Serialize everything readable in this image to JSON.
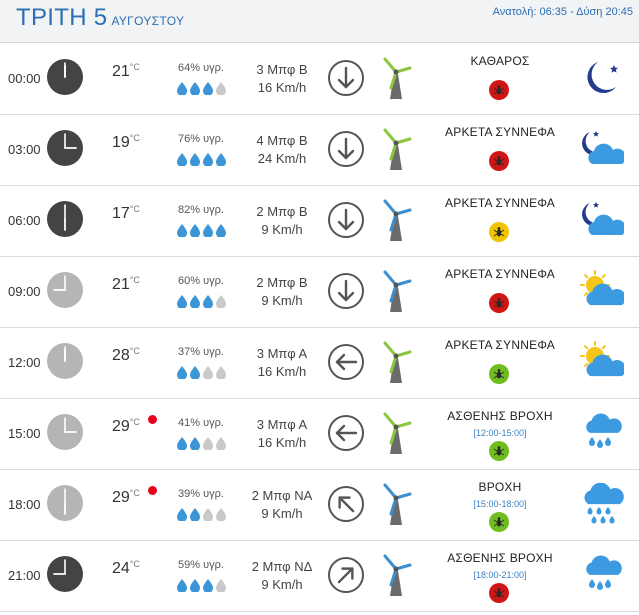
{
  "header": {
    "day": "ΤΡΙΤΗ 5",
    "month": "ΑΥΓΟΥΣΤΟΥ",
    "sun": "Ανατολή: 06:35  - Δύση 20:45"
  },
  "colors": {
    "accent": "#2c6fb3",
    "alert_red": "#e8001c",
    "bug_red": "#d01515",
    "bug_yellow": "#f0c400",
    "bug_green": "#6fbe1e",
    "turbine_green": "#8cc63f",
    "turbine_blue": "#3c8fce"
  },
  "rows": [
    {
      "time": "00:00",
      "temp": "21",
      "unit": "°C",
      "alert": false,
      "humidity": "64% υγρ.",
      "drops": 3,
      "beaufort": "3 Μπφ Β",
      "speed": "16 Km/h",
      "direction": "N",
      "turbine": "green",
      "condition": "ΚΑΘΑΡΟΣ",
      "range": "",
      "bug": "red",
      "icon": "moon-icon",
      "clock": "dark"
    },
    {
      "time": "03:00",
      "temp": "19",
      "unit": "°C",
      "alert": false,
      "humidity": "76% υγρ.",
      "drops": 4,
      "beaufort": "4 Μπφ Β",
      "speed": "24 Km/h",
      "direction": "N",
      "turbine": "green",
      "condition": "ΑΡΚΕΤΑ ΣΥΝΝΕΦΑ",
      "range": "",
      "bug": "red",
      "icon": "moon-cloud-icon",
      "clock": "dark"
    },
    {
      "time": "06:00",
      "temp": "17",
      "unit": "°C",
      "alert": false,
      "humidity": "82% υγρ.",
      "drops": 4,
      "beaufort": "2 Μπφ Β",
      "speed": "9 Km/h",
      "direction": "N",
      "turbine": "blue",
      "condition": "ΑΡΚΕΤΑ ΣΥΝΝΕΦΑ",
      "range": "",
      "bug": "yellow",
      "icon": "moon-cloud-icon",
      "clock": "dark"
    },
    {
      "time": "09:00",
      "temp": "21",
      "unit": "°C",
      "alert": false,
      "humidity": "60% υγρ.",
      "drops": 3,
      "beaufort": "2 Μπφ Β",
      "speed": "9 Km/h",
      "direction": "N",
      "turbine": "blue",
      "condition": "ΑΡΚΕΤΑ ΣΥΝΝΕΦΑ",
      "range": "",
      "bug": "red",
      "icon": "sun-cloud-icon",
      "clock": "light"
    },
    {
      "time": "12:00",
      "temp": "28",
      "unit": "°C",
      "alert": false,
      "humidity": "37% υγρ.",
      "drops": 2,
      "beaufort": "3 Μπφ Α",
      "speed": "16 Km/h",
      "direction": "E",
      "turbine": "green",
      "condition": "ΑΡΚΕΤΑ ΣΥΝΝΕΦΑ",
      "range": "",
      "bug": "green",
      "icon": "sun-cloud-icon",
      "clock": "light"
    },
    {
      "time": "15:00",
      "temp": "29",
      "unit": "°C",
      "alert": true,
      "humidity": "41% υγρ.",
      "drops": 2,
      "beaufort": "3 Μπφ Α",
      "speed": "16 Km/h",
      "direction": "E",
      "turbine": "green",
      "condition": "ΑΣΘΕΝΗΣ ΒΡΟΧΗ",
      "range": "[12:00-15:00]",
      "bug": "green",
      "icon": "light-rain-icon",
      "clock": "light"
    },
    {
      "time": "18:00",
      "temp": "29",
      "unit": "°C",
      "alert": true,
      "humidity": "39% υγρ.",
      "drops": 2,
      "beaufort": "2 Μπφ ΝΑ",
      "speed": "9 Km/h",
      "direction": "SE",
      "turbine": "blue",
      "condition": "ΒΡΟΧΗ",
      "range": "[15:00-18:00]",
      "bug": "green",
      "icon": "rain-icon",
      "clock": "light"
    },
    {
      "time": "21:00",
      "temp": "24",
      "unit": "°C",
      "alert": false,
      "humidity": "59% υγρ.",
      "drops": 3,
      "beaufort": "2 Μπφ ΝΔ",
      "speed": "9 Km/h",
      "direction": "SW",
      "turbine": "blue",
      "condition": "ΑΣΘΕΝΗΣ ΒΡΟΧΗ",
      "range": "[18:00-21:00]",
      "bug": "red",
      "icon": "light-rain-icon",
      "clock": "dark"
    }
  ]
}
